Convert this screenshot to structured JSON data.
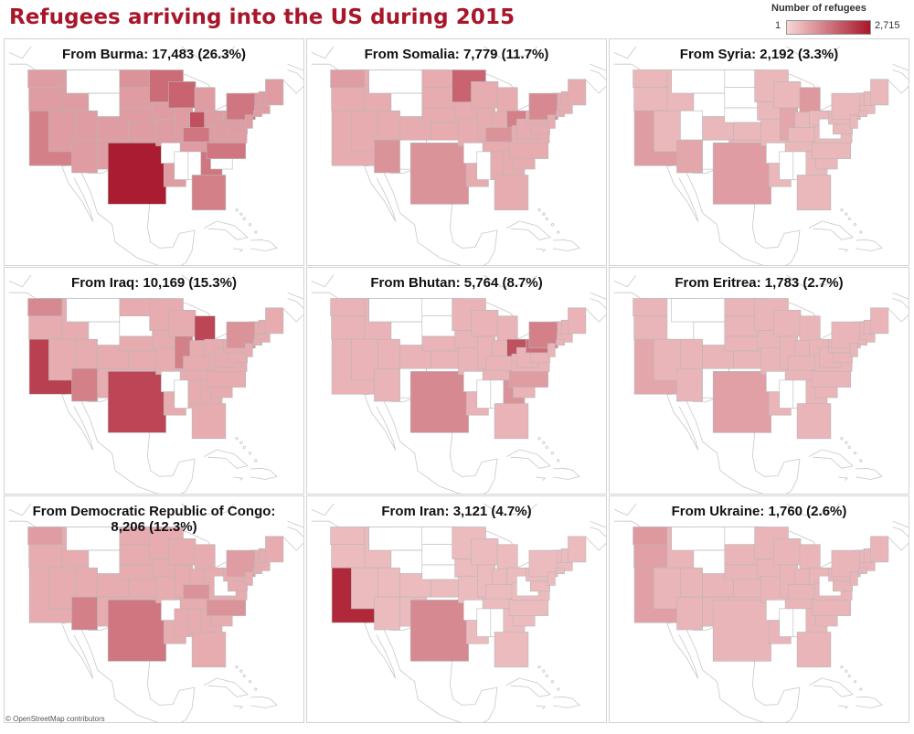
{
  "title": "Refugees arriving into the US during 2015",
  "legend": {
    "title": "Number of refugees",
    "min_label": "1",
    "max_label": "2,715",
    "color_low": "#f7d6d6",
    "color_high": "#a8162a"
  },
  "attribution": "© OpenStreetMap contributors",
  "panels": [
    {
      "title": "From Burma: 17,483 (26.3%)",
      "scale": {
        "default": 0.3,
        "tx": 0.97,
        "ca": 0.45,
        "in": 0.7,
        "mn": 0.55,
        "wi": 0.6,
        "ny": 0.5,
        "ga": 0.5,
        "nc": 0.5,
        "ky": 0.5,
        "nd": 0.35,
        "fl": 0.45
      }
    },
    {
      "title": "From Somalia: 7,779 (11.7%)",
      "scale": {
        "default": 0.22,
        "mn": 0.6,
        "oh": 0.45,
        "ny": 0.4,
        "tx": 0.35,
        "az": 0.35,
        "wa": 0.3,
        "ky": 0.35
      }
    },
    {
      "title": "From Syria: 2,192 (3.3%)",
      "scale": {
        "default": 0.16,
        "tx": 0.3,
        "ca": 0.3,
        "mi": 0.32,
        "az": 0.25,
        "il": 0.25
      }
    },
    {
      "title": "From Iraq: 10,169 (15.3%)",
      "scale": {
        "default": 0.22,
        "tx": 0.75,
        "ca": 0.78,
        "mi": 0.75,
        "az": 0.45,
        "wa": 0.4,
        "il": 0.45,
        "ny": 0.35
      }
    },
    {
      "title": "From Bhutan: 5,764 (8.7%)",
      "scale": {
        "default": 0.18,
        "oh": 0.7,
        "pa": 0.55,
        "ny": 0.45,
        "tx": 0.4,
        "ga": 0.35,
        "nc": 0.3
      }
    },
    {
      "title": "From Eritrea: 1,783 (2.7%)",
      "scale": {
        "default": 0.17,
        "tx": 0.28,
        "ca": 0.25
      }
    },
    {
      "title": "From Democratic Republic of Congo:\n8,206 (12.3%)",
      "scale": {
        "default": 0.22,
        "tx": 0.5,
        "az": 0.45,
        "ky": 0.35,
        "nc": 0.35,
        "wa": 0.3,
        "ny": 0.3
      }
    },
    {
      "title": "From Iran: 3,121 (4.7%)",
      "scale": {
        "default": 0.14,
        "ca": 0.9,
        "tx": 0.4
      }
    },
    {
      "title": "From Ukraine: 1,760 (2.6%)",
      "scale": {
        "default": 0.17,
        "wa": 0.32,
        "ca": 0.28,
        "or": 0.28
      }
    }
  ]
}
